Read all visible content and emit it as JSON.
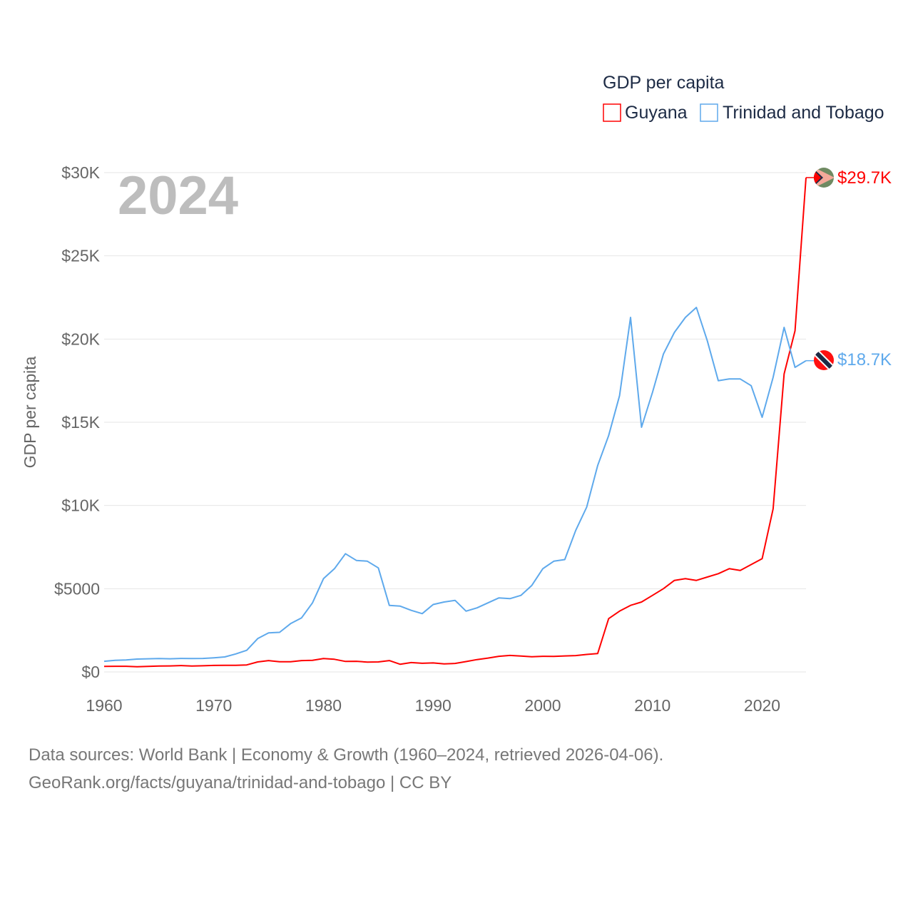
{
  "chart_data": {
    "type": "line",
    "title": "GDP per capita",
    "year_label": "2024",
    "ylabel": "GDP per capita",
    "xlabel": "",
    "xlim": [
      1960,
      2024
    ],
    "ylim": [
      0,
      30000
    ],
    "x_ticks": [
      1960,
      1970,
      1980,
      1990,
      2000,
      2010,
      2020
    ],
    "x_tick_labels": [
      "1960",
      "1970",
      "1980",
      "1990",
      "2000",
      "2010",
      "2020"
    ],
    "y_ticks": [
      0,
      5000,
      10000,
      15000,
      20000,
      25000,
      30000
    ],
    "y_tick_labels": [
      "$0",
      "$5000",
      "$10K",
      "$15K",
      "$20K",
      "$25K",
      "$30K"
    ],
    "grid": true,
    "legend_position": "top-right",
    "x": [
      1960,
      1961,
      1962,
      1963,
      1964,
      1965,
      1966,
      1967,
      1968,
      1969,
      1970,
      1971,
      1972,
      1973,
      1974,
      1975,
      1976,
      1977,
      1978,
      1979,
      1980,
      1981,
      1982,
      1983,
      1984,
      1985,
      1986,
      1987,
      1988,
      1989,
      1990,
      1991,
      1992,
      1993,
      1994,
      1995,
      1996,
      1997,
      1998,
      1999,
      2000,
      2001,
      2002,
      2003,
      2004,
      2005,
      2006,
      2007,
      2008,
      2009,
      2010,
      2011,
      2012,
      2013,
      2014,
      2015,
      2016,
      2017,
      2018,
      2019,
      2020,
      2021,
      2022,
      2023,
      2024
    ],
    "series": [
      {
        "name": "Guyana",
        "color": "#ff0000",
        "end_label": "$29.7K",
        "values": [
          330,
          340,
          340,
          310,
          330,
          350,
          360,
          380,
          350,
          370,
          390,
          400,
          400,
          420,
          600,
          680,
          610,
          610,
          680,
          700,
          800,
          760,
          630,
          640,
          590,
          600,
          680,
          460,
          560,
          520,
          540,
          480,
          510,
          620,
          740,
          830,
          940,
          990,
          950,
          910,
          940,
          930,
          960,
          980,
          1050,
          1100,
          3200,
          3650,
          4000,
          4200,
          4600,
          5000,
          5500,
          5600,
          5500,
          5700,
          5900,
          6200,
          6100,
          6450,
          6800,
          9800,
          17900,
          20500,
          29700
        ]
      },
      {
        "name": "Trinidad and Tobago",
        "color": "#5ea9ec",
        "end_label": "$18.7K",
        "values": [
          640,
          700,
          720,
          770,
          790,
          800,
          790,
          810,
          800,
          810,
          850,
          900,
          1080,
          1300,
          2000,
          2350,
          2380,
          2900,
          3250,
          4150,
          5600,
          6200,
          7100,
          6700,
          6650,
          6250,
          4000,
          3950,
          3700,
          3500,
          4050,
          4200,
          4300,
          3650,
          3850,
          4150,
          4450,
          4400,
          4600,
          5200,
          6200,
          6650,
          6750,
          8500,
          9900,
          12400,
          14200,
          16600,
          21300,
          14700,
          16800,
          19100,
          20400,
          21300,
          21900,
          19900,
          17500,
          17600,
          17600,
          17200,
          15300,
          17700,
          20700,
          18300,
          18700
        ]
      }
    ]
  },
  "footer": {
    "line1": "Data sources: World Bank | Economy & Growth (1960–2024, retrieved 2026-04-06).",
    "line2": "GeoRank.org/facts/guyana/trinidad-and-tobago | CC BY"
  }
}
